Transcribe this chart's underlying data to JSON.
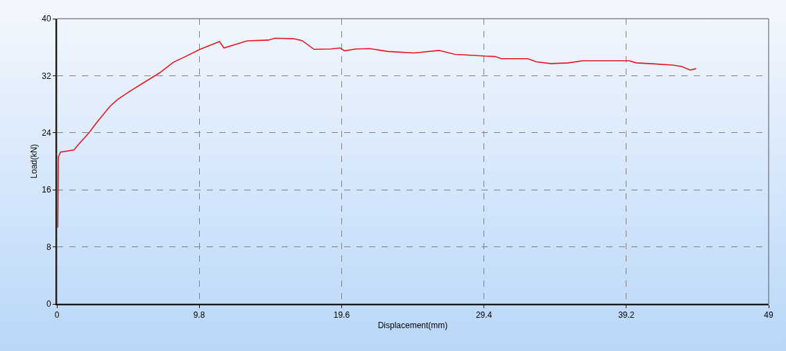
{
  "chart_data": {
    "type": "line",
    "xlabel": "Displacement(mm)",
    "ylabel": "Load(kN)",
    "x": [
      0.06,
      0.1,
      0.25,
      1.18,
      1.42,
      2.21,
      2.77,
      3.65,
      4.2,
      5.0,
      5.95,
      7.07,
      8.02,
      8.66,
      9.85,
      11.2,
      11.5,
      13.1,
      14.55,
      15.0,
      16.3,
      16.9,
      17.7,
      18.85,
      19.5,
      19.8,
      20.6,
      21.55,
      22.8,
      24.6,
      26.3,
      27.4,
      28.7,
      29.5,
      30.15,
      30.6,
      32.4,
      33.0,
      34.0,
      35.2,
      36.2,
      39.4,
      39.9,
      40.8,
      42.4,
      43.0,
      43.6,
      44.0
    ],
    "series": [
      {
        "color": "#e8141c",
        "values": [
          10.7,
          20.6,
          21.3,
          21.6,
          22.2,
          24.0,
          25.5,
          27.7,
          28.7,
          29.8,
          31.0,
          32.4,
          33.9,
          34.5,
          35.7,
          36.8,
          35.9,
          36.9,
          37.0,
          37.25,
          37.2,
          36.9,
          35.7,
          35.75,
          35.9,
          35.5,
          35.75,
          35.8,
          35.4,
          35.2,
          35.55,
          35.0,
          34.85,
          34.75,
          34.7,
          34.4,
          34.4,
          33.95,
          33.7,
          33.8,
          34.1,
          34.1,
          33.8,
          33.7,
          33.5,
          33.3,
          32.8,
          33.0
        ]
      }
    ],
    "xlim": [
      0,
      49
    ],
    "xticks": [
      0,
      9.8,
      19.6,
      29.4,
      39.2,
      49
    ],
    "ylim": [
      0,
      40
    ],
    "yticks": [
      0,
      8,
      16,
      24,
      32,
      40
    ],
    "grid": true,
    "legend": false,
    "line_style": "solid",
    "marker": "none"
  }
}
